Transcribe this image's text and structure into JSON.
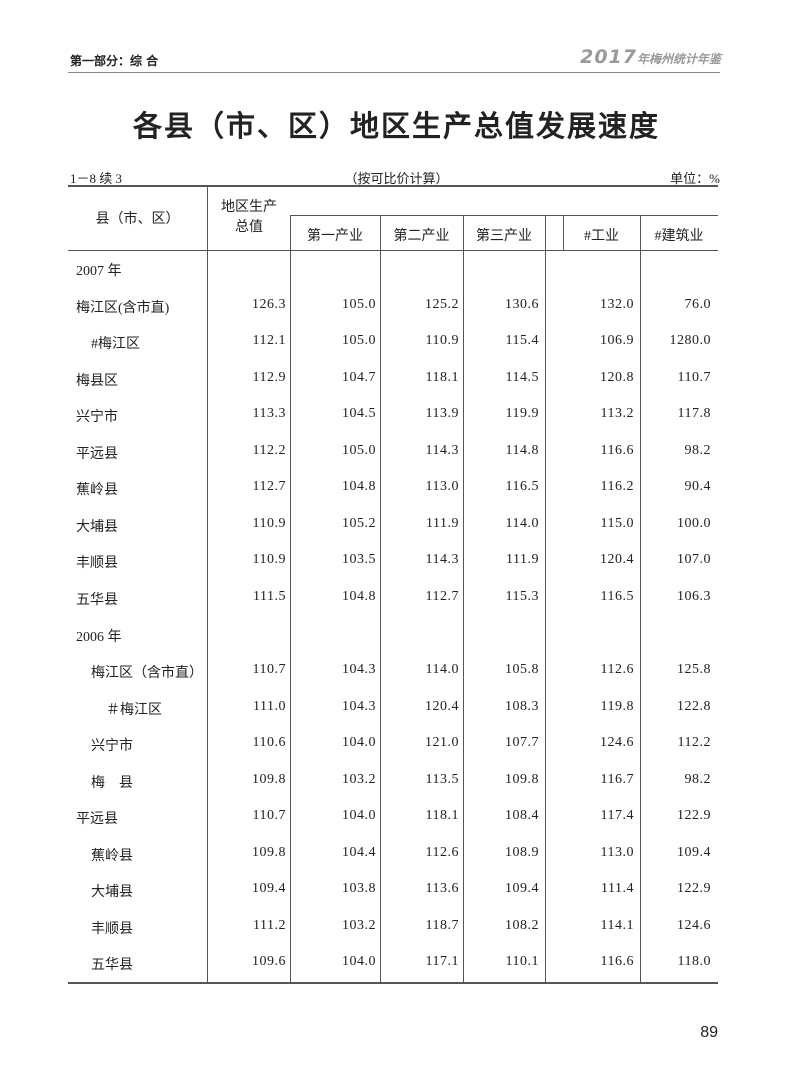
{
  "header": {
    "section": "第一部分：综 合",
    "yearbook_year": "2017",
    "yearbook_name": "年梅州统计年鉴"
  },
  "title": "各县（市、区）地区生产总值发展速度",
  "table_id": "1－8 续 3",
  "note": "（按可比价计算）",
  "unit": "单位：%",
  "columns": {
    "region": "县（市、区）",
    "gdp": "地区生产总值",
    "primary": "第一产业",
    "secondary": "第二产业",
    "tertiary": "第三产业",
    "industry": "#工业",
    "construction": "#建筑业"
  },
  "rows": [
    {
      "name": "2007 年",
      "indent": 0,
      "values": [
        "",
        "",
        "",
        "",
        "",
        ""
      ]
    },
    {
      "name": "梅江区(含市直)",
      "indent": 0,
      "values": [
        "126.3",
        "105.0",
        "125.2",
        "130.6",
        "132.0",
        "76.0"
      ]
    },
    {
      "name": "#梅江区",
      "indent": 1,
      "values": [
        "112.1",
        "105.0",
        "110.9",
        "115.4",
        "106.9",
        "1280.0"
      ]
    },
    {
      "name": "梅县区",
      "indent": 0,
      "values": [
        "112.9",
        "104.7",
        "118.1",
        "114.5",
        "120.8",
        "110.7"
      ]
    },
    {
      "name": "兴宁市",
      "indent": 0,
      "values": [
        "113.3",
        "104.5",
        "113.9",
        "119.9",
        "113.2",
        "117.8"
      ]
    },
    {
      "name": "平远县",
      "indent": 0,
      "values": [
        "112.2",
        "105.0",
        "114.3",
        "114.8",
        "116.6",
        "98.2"
      ]
    },
    {
      "name": "蕉岭县",
      "indent": 0,
      "values": [
        "112.7",
        "104.8",
        "113.0",
        "116.5",
        "116.2",
        "90.4"
      ]
    },
    {
      "name": "大埔县",
      "indent": 0,
      "values": [
        "110.9",
        "105.2",
        "111.9",
        "114.0",
        "115.0",
        "100.0"
      ]
    },
    {
      "name": "丰顺县",
      "indent": 0,
      "values": [
        "110.9",
        "103.5",
        "114.3",
        "111.9",
        "120.4",
        "107.0"
      ]
    },
    {
      "name": "五华县",
      "indent": 0,
      "values": [
        "111.5",
        "104.8",
        "112.7",
        "115.3",
        "116.5",
        "106.3"
      ]
    },
    {
      "name": "2006 年",
      "indent": 0,
      "values": [
        "",
        "",
        "",
        "",
        "",
        ""
      ]
    },
    {
      "name": "梅江区（含市直）",
      "indent": 1,
      "values": [
        "110.7",
        "104.3",
        "114.0",
        "105.8",
        "112.6",
        "125.8"
      ]
    },
    {
      "name": "＃梅江区",
      "indent": 2,
      "values": [
        "111.0",
        "104.3",
        "120.4",
        "108.3",
        "119.8",
        "122.8"
      ]
    },
    {
      "name": "兴宁市",
      "indent": 1,
      "values": [
        "110.6",
        "104.0",
        "121.0",
        "107.7",
        "124.6",
        "112.2"
      ]
    },
    {
      "name": "梅　县",
      "indent": 1,
      "values": [
        "109.8",
        "103.2",
        "113.5",
        "109.8",
        "116.7",
        "98.2"
      ]
    },
    {
      "name": "平远县",
      "indent": 0,
      "values": [
        "110.7",
        "104.0",
        "118.1",
        "108.4",
        "117.4",
        "122.9"
      ]
    },
    {
      "name": "蕉岭县",
      "indent": 1,
      "values": [
        "109.8",
        "104.4",
        "112.6",
        "108.9",
        "113.0",
        "109.4"
      ]
    },
    {
      "name": "大埔县",
      "indent": 1,
      "values": [
        "109.4",
        "103.8",
        "113.6",
        "109.4",
        "111.4",
        "122.9"
      ]
    },
    {
      "name": "丰顺县",
      "indent": 1,
      "values": [
        "111.2",
        "103.2",
        "118.7",
        "108.2",
        "114.1",
        "124.6"
      ]
    },
    {
      "name": "五华县",
      "indent": 1,
      "values": [
        "109.6",
        "104.0",
        "117.1",
        "110.1",
        "116.6",
        "118.0"
      ]
    }
  ],
  "page_number": "89"
}
